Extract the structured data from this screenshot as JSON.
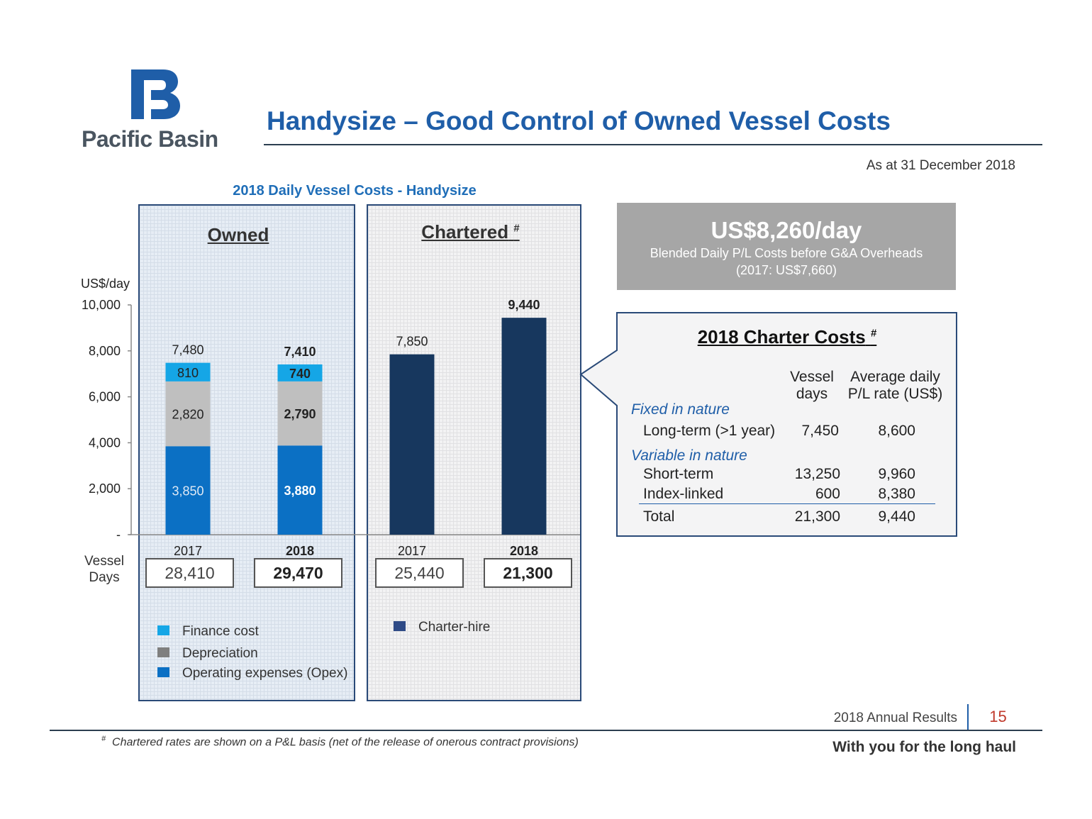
{
  "header": {
    "logo_text": "Pacific Basin",
    "title": "Handysize – Good Control of Owned Vessel Costs",
    "as_at": "As at 31 December 2018"
  },
  "chart_data": {
    "type": "bar",
    "title": "2018 Daily Vessel Costs - Handysize",
    "ylabel": "US$/day",
    "ylim": [
      0,
      10000
    ],
    "yticks": [
      0,
      2000,
      4000,
      6000,
      8000,
      10000
    ],
    "ytick_labels": [
      "-",
      "2,000",
      "4,000",
      "6,000",
      "8,000",
      "10,000"
    ],
    "panels": [
      {
        "name": "Owned",
        "stacked": true,
        "categories": [
          "2017",
          "2018"
        ],
        "series": [
          {
            "name": "Operating expenses (Opex)",
            "color": "#0b70c4",
            "values": [
              3850,
              3880
            ],
            "labels": [
              "3,850",
              "3,880"
            ]
          },
          {
            "name": "Depreciation",
            "color": "#bfbfbf",
            "values": [
              2820,
              2790
            ],
            "labels": [
              "2,820",
              "2,790"
            ]
          },
          {
            "name": "Finance cost",
            "color": "#15a6e6",
            "values": [
              810,
              740
            ],
            "labels": [
              "810",
              "740"
            ]
          }
        ],
        "totals": [
          7480,
          7410
        ],
        "total_labels": [
          "7,480",
          "7,410"
        ],
        "vessel_days": [
          "28,410",
          "29,470"
        ]
      },
      {
        "name": "Chartered",
        "name_mark": "#",
        "stacked": false,
        "categories": [
          "2017",
          "2018"
        ],
        "series": [
          {
            "name": "Charter-hire",
            "color": "#17375e",
            "values": [
              7850,
              9440
            ],
            "labels": [
              "7,850",
              "9,440"
            ]
          }
        ],
        "vessel_days": [
          "25,440",
          "21,300"
        ]
      }
    ],
    "vessel_days_label": [
      "Vessel",
      "Days"
    ],
    "legend": {
      "owned": [
        "Finance cost",
        "Depreciation",
        "Operating expenses (Opex)"
      ],
      "chartered": [
        "Charter-hire"
      ]
    }
  },
  "legend_colors": {
    "finance": "#15a6e6",
    "depreciation": "#7f7f7f",
    "opex": "#0b70c4",
    "charter": "#2e4a86"
  },
  "summary": {
    "headline": "US$8,260/day",
    "line1": "Blended Daily P/L Costs before G&A Overheads",
    "line2": "(2017: US$7,660)"
  },
  "charter_costs": {
    "title": "2018 Charter Costs",
    "title_mark": "#",
    "col1": [
      "Vessel",
      "days"
    ],
    "col2": [
      "Average daily",
      "P/L rate (US$)"
    ],
    "group_fixed": "Fixed in nature",
    "group_variable": "Variable in nature",
    "rows": [
      {
        "label": "Long-term (>1 year)",
        "days": "7,450",
        "rate": "8,600"
      },
      {
        "label": "Short-term",
        "days": "13,250",
        "rate": "9,960"
      },
      {
        "label": "Index-linked",
        "days": "600",
        "rate": "8,380"
      }
    ],
    "total": {
      "label": "Total",
      "days": "21,300",
      "rate": "9,440"
    }
  },
  "footer": {
    "results": "2018 Annual Results",
    "page": "15",
    "note_mark": "#",
    "note": "Chartered rates are shown on a P&L basis (net of the release of onerous contract provisions)",
    "tagline": "With you for the long haul"
  }
}
